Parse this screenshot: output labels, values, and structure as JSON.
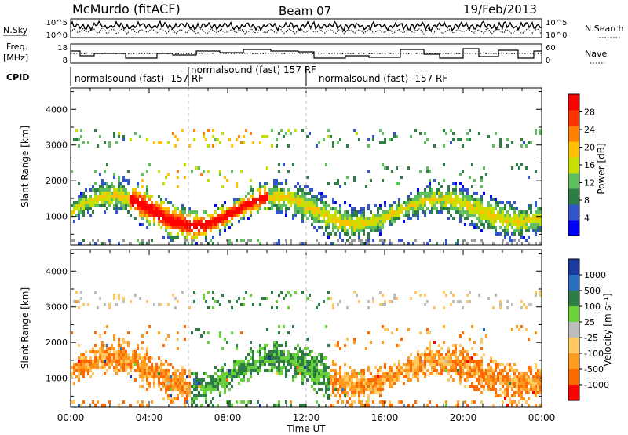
{
  "header": {
    "title": "McMurdo (fitACF)",
    "beam": "Beam 07",
    "date": "19/Feb/2013"
  },
  "top_panels": {
    "nsky_label": "N.Sky",
    "nsky_ticks": [
      "10^5",
      "10^0"
    ],
    "nsearch_label": "N.Search",
    "nsearch_ticks": [
      "10^5",
      "10^0"
    ],
    "freq_label_1": "Freq.",
    "freq_label_2": "[MHz]",
    "freq_ticks": [
      "18",
      "8"
    ],
    "nave_label": "Nave",
    "nave_ticks": [
      "60",
      "0"
    ],
    "cpid_label": "CPID",
    "cpid_segments": [
      "normalsound (fast) -157 RF",
      "normalsound (fast) 157 RF",
      "normalsound (fast) -157 RF"
    ]
  },
  "chart_data": [
    {
      "type": "heatmap",
      "title": "",
      "ylabel": "Slant Range [km]",
      "ylim": [
        200,
        4600
      ],
      "yticks": [
        "1000",
        "2000",
        "3000",
        "4000"
      ],
      "colorbar_label": "Power [dB]",
      "colorbar_ticks": [
        "4",
        "8",
        "12",
        "16",
        "20",
        "24",
        "28"
      ],
      "colorbar_colors": [
        "#0000ff",
        "#3355cc",
        "#2e7d46",
        "#5fbf5f",
        "#c8e000",
        "#ffc000",
        "#ff8000",
        "#ff3300",
        "#ff0000"
      ],
      "ground_scatter_color": "#9a9a9a"
    },
    {
      "type": "heatmap",
      "title": "",
      "ylabel": "Slant Range [km]",
      "xlabel": "Time UT",
      "ylim": [
        200,
        4600
      ],
      "yticks": [
        "1000",
        "2000",
        "3000",
        "4000"
      ],
      "xticks": [
        "00:00",
        "04:00",
        "08:00",
        "12:00",
        "16:00",
        "20:00",
        "00:00"
      ],
      "colorbar_label": "Velocity [m s⁻¹]",
      "colorbar_ticks": [
        "1000",
        "500",
        "100",
        "25",
        "-25",
        "-100",
        "-500",
        "-1000"
      ],
      "colorbar_colors": [
        "#1a3aa0",
        "#2a6fbf",
        "#2e7d46",
        "#6ad13a",
        "#bdbdbd",
        "#ffc860",
        "#ff9a20",
        "#ff6a00",
        "#ff0000"
      ]
    }
  ]
}
